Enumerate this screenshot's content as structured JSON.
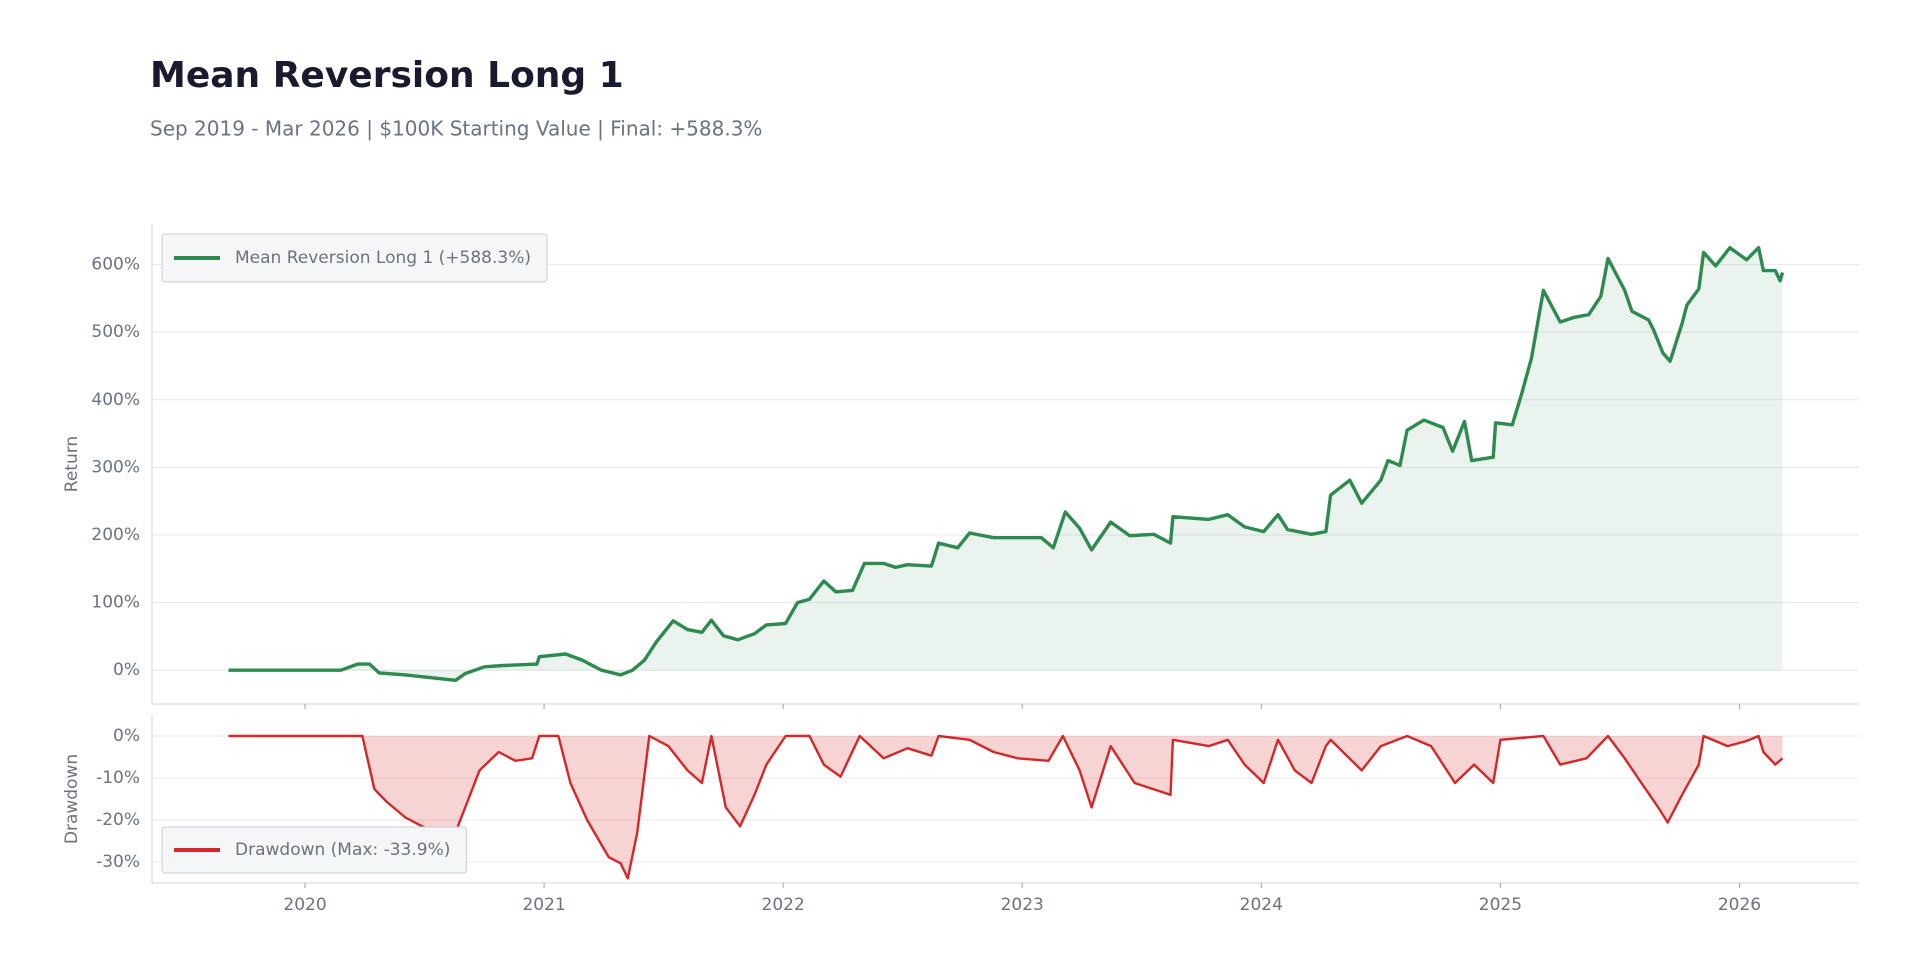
{
  "chart_data": [
    {
      "type": "line",
      "fill": "area",
      "title": "Mean Reversion Long 1",
      "subtitle": "Sep 2019 - Mar 2026 | $100K Starting Value | Final: +588.3%",
      "ylabel": "Return",
      "x": [
        2019.68,
        2020.15,
        2020.22,
        2020.27,
        2020.31,
        2020.42,
        2020.63,
        2020.67,
        2020.75,
        2020.83,
        2020.97,
        2020.98,
        2021.09,
        2021.16,
        2021.24,
        2021.32,
        2021.37,
        2021.42,
        2021.47,
        2021.54,
        2021.6,
        2021.66,
        2021.7,
        2021.75,
        2021.81,
        2021.88,
        2021.93,
        2022.01,
        2022.06,
        2022.11,
        2022.17,
        2022.22,
        2022.29,
        2022.34,
        2022.42,
        2022.47,
        2022.52,
        2022.62,
        2022.65,
        2022.73,
        2022.78,
        2022.88,
        2023.08,
        2023.13,
        2023.18,
        2023.24,
        2023.29,
        2023.37,
        2023.45,
        2023.55,
        2023.62,
        2023.63,
        2023.78,
        2023.86,
        2023.93,
        2024.01,
        2024.07,
        2024.11,
        2024.21,
        2024.27,
        2024.29,
        2024.37,
        2024.42,
        2024.5,
        2024.53,
        2024.58,
        2024.61,
        2024.68,
        2024.76,
        2024.8,
        2024.85,
        2024.88,
        2024.97,
        2024.98,
        2025.05,
        2025.09,
        2025.13,
        2025.18,
        2025.25,
        2025.31,
        2025.37,
        2025.42,
        2025.45,
        2025.52,
        2025.55,
        2025.62,
        2025.64,
        2025.68,
        2025.71,
        2025.76,
        2025.78,
        2025.83,
        2025.85,
        2025.9,
        2025.96,
        2026.03,
        2026.08,
        2026.1,
        2026.15,
        2026.17,
        2026.18
      ],
      "series": [
        {
          "name": "Mean Reversion Long 1 (+588.3%)",
          "color": "#2e8b50",
          "values": [
            0,
            0,
            9,
            9,
            -4,
            -7,
            -15,
            -5,
            5,
            7,
            9,
            20,
            24,
            15,
            0,
            -7,
            0,
            15,
            42,
            73,
            60,
            56,
            74,
            51,
            45,
            54,
            67,
            69,
            100,
            105,
            132,
            116,
            118,
            158,
            158,
            152,
            156,
            154,
            188,
            181,
            203,
            196,
            196,
            181,
            234,
            210,
            178,
            219,
            199,
            201,
            188,
            227,
            223,
            230,
            212,
            205,
            230,
            208,
            201,
            205,
            259,
            281,
            247,
            281,
            310,
            303,
            355,
            370,
            359,
            324,
            368,
            310,
            315,
            366,
            363,
            410,
            462,
            562,
            515,
            522,
            526,
            553,
            609,
            562,
            531,
            518,
            504,
            469,
            457,
            513,
            540,
            564,
            618,
            598,
            625,
            607,
            625,
            591,
            591,
            576,
            588.3
          ]
        }
      ],
      "xlim": [
        2019.36,
        2026.5
      ],
      "xticks": [
        2020,
        2021,
        2022,
        2023,
        2024,
        2025,
        2026
      ],
      "ylim": [
        -50,
        660
      ],
      "yticks": [
        {
          "value": 0,
          "label": "0%"
        },
        {
          "value": 100,
          "label": "100%"
        },
        {
          "value": 200,
          "label": "200%"
        },
        {
          "value": 300,
          "label": "300%"
        },
        {
          "value": 400,
          "label": "400%"
        },
        {
          "value": 500,
          "label": "500%"
        },
        {
          "value": 600,
          "label": "600%"
        }
      ],
      "grid": true,
      "legend": "upper left"
    },
    {
      "type": "line",
      "fill": "area",
      "ylabel": "Drawdown",
      "x": [
        2019.68,
        2020.24,
        2020.29,
        2020.34,
        2020.42,
        2020.52,
        2020.63,
        2020.67,
        2020.73,
        2020.81,
        2020.88,
        2020.95,
        2020.98,
        2021.06,
        2021.11,
        2021.18,
        2021.27,
        2021.32,
        2021.35,
        2021.39,
        2021.44,
        2021.52,
        2021.6,
        2021.66,
        2021.7,
        2021.76,
        2021.82,
        2021.88,
        2021.93,
        2022.01,
        2022.11,
        2022.17,
        2022.24,
        2022.32,
        2022.42,
        2022.52,
        2022.62,
        2022.65,
        2022.78,
        2022.88,
        2022.98,
        2023.11,
        2023.17,
        2023.24,
        2023.29,
        2023.37,
        2023.47,
        2023.62,
        2023.63,
        2023.78,
        2023.86,
        2023.93,
        2024.01,
        2024.07,
        2024.14,
        2024.21,
        2024.27,
        2024.29,
        2024.42,
        2024.5,
        2024.61,
        2024.71,
        2024.81,
        2024.89,
        2024.97,
        2025.0,
        2025.18,
        2025.25,
        2025.36,
        2025.45,
        2025.52,
        2025.59,
        2025.66,
        2025.7,
        2025.76,
        2025.83,
        2025.85,
        2025.95,
        2026.03,
        2026.08,
        2026.1,
        2026.15,
        2026.18
      ],
      "series": [
        {
          "name": "Drawdown (Max: -33.9%)",
          "color": "#d62728",
          "values": [
            0,
            0,
            -12.6,
            -15.6,
            -19.4,
            -22.4,
            -22.9,
            -17,
            -8.2,
            -3.8,
            -5.9,
            -5.3,
            0,
            0,
            -11.2,
            -20,
            -28.8,
            -30.3,
            -33.9,
            -22.9,
            0,
            -2.4,
            -8.2,
            -11.2,
            0,
            -17,
            -21.5,
            -14,
            -6.8,
            0,
            0,
            -6.8,
            -9.7,
            0,
            -5.3,
            -2.9,
            -4.7,
            0,
            -0.9,
            -3.8,
            -5.3,
            -5.9,
            0,
            -8.2,
            -17,
            -2.4,
            -11.2,
            -14,
            -0.9,
            -2.4,
            -0.9,
            -6.8,
            -11.2,
            -0.9,
            -8.2,
            -11.2,
            -2.4,
            -0.9,
            -8.2,
            -2.4,
            0,
            -2.4,
            -11.2,
            -6.8,
            -11.2,
            -0.9,
            0,
            -6.8,
            -5.3,
            0,
            -5.3,
            -11.2,
            -17,
            -20.6,
            -14,
            -6.8,
            0,
            -2.4,
            -1.2,
            0,
            -3.8,
            -6.8,
            -5.3
          ]
        }
      ],
      "xlim": [
        2019.36,
        2026.5
      ],
      "xticks": [
        2020,
        2021,
        2022,
        2023,
        2024,
        2025,
        2026
      ],
      "ylim": [
        -35,
        5
      ],
      "yticks": [
        {
          "value": -30,
          "label": "-30%"
        },
        {
          "value": -20,
          "label": "-20%"
        },
        {
          "value": -10,
          "label": "-10%"
        },
        {
          "value": 0,
          "label": "0%"
        }
      ],
      "grid": true,
      "legend": "lower left"
    }
  ]
}
